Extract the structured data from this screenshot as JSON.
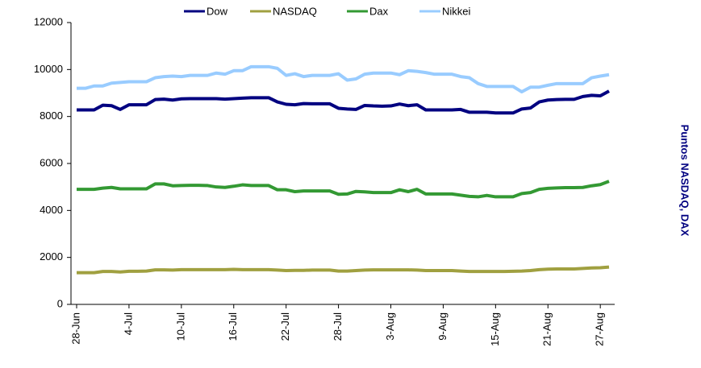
{
  "chart_data": {
    "type": "line",
    "y_label": "Puntos NASDAQ, DAX",
    "categories": [
      "28-Jun",
      null,
      null,
      null,
      null,
      null,
      "4-Jul",
      null,
      null,
      null,
      null,
      null,
      "10-Jul",
      null,
      null,
      null,
      null,
      null,
      "16-Jul",
      null,
      null,
      null,
      null,
      null,
      "22-Jul",
      null,
      null,
      null,
      null,
      null,
      "28-Jul",
      null,
      null,
      null,
      null,
      null,
      "3-Aug",
      null,
      null,
      null,
      null,
      null,
      "9-Aug",
      null,
      null,
      null,
      null,
      null,
      "15-Aug",
      null,
      null,
      null,
      null,
      null,
      "21-Aug",
      null,
      null,
      null,
      null,
      null,
      "27-Aug",
      null
    ],
    "series": [
      {
        "name": "Dow",
        "color": "#000080",
        "values": [
          8280,
          8280,
          8280,
          8480,
          8460,
          8300,
          8500,
          8500,
          8500,
          8720,
          8740,
          8700,
          8750,
          8760,
          8760,
          8760,
          8760,
          8740,
          8760,
          8780,
          8800,
          8800,
          8800,
          8620,
          8520,
          8500,
          8550,
          8540,
          8540,
          8540,
          8350,
          8320,
          8300,
          8470,
          8450,
          8440,
          8450,
          8530,
          8460,
          8500,
          8280,
          8280,
          8280,
          8280,
          8300,
          8180,
          8180,
          8180,
          8150,
          8150,
          8150,
          8320,
          8360,
          8620,
          8700,
          8720,
          8730,
          8730,
          8850,
          8900,
          8880,
          9080
        ]
      },
      {
        "name": "NASDAQ",
        "color": "#a0a040",
        "values": [
          1350,
          1350,
          1350,
          1400,
          1400,
          1380,
          1410,
          1410,
          1420,
          1470,
          1470,
          1460,
          1480,
          1480,
          1480,
          1480,
          1480,
          1480,
          1490,
          1480,
          1480,
          1480,
          1480,
          1460,
          1440,
          1450,
          1450,
          1460,
          1460,
          1460,
          1420,
          1420,
          1440,
          1460,
          1470,
          1470,
          1470,
          1470,
          1470,
          1460,
          1440,
          1440,
          1440,
          1440,
          1420,
          1400,
          1400,
          1400,
          1400,
          1400,
          1410,
          1420,
          1440,
          1480,
          1500,
          1510,
          1510,
          1510,
          1530,
          1550,
          1560,
          1590
        ]
      },
      {
        "name": "Dax",
        "color": "#339933",
        "values": [
          4900,
          4900,
          4900,
          4950,
          4980,
          4920,
          4920,
          4920,
          4920,
          5130,
          5130,
          5050,
          5060,
          5070,
          5070,
          5060,
          5000,
          4980,
          5030,
          5090,
          5060,
          5060,
          5060,
          4880,
          4880,
          4800,
          4830,
          4830,
          4830,
          4830,
          4690,
          4700,
          4810,
          4790,
          4760,
          4760,
          4760,
          4880,
          4800,
          4900,
          4700,
          4700,
          4700,
          4700,
          4650,
          4600,
          4580,
          4640,
          4580,
          4580,
          4580,
          4720,
          4760,
          4900,
          4940,
          4960,
          4970,
          4970,
          4980,
          5050,
          5100,
          5240
        ]
      },
      {
        "name": "Nikkei",
        "color": "#99ccff",
        "values": [
          9200,
          9200,
          9300,
          9300,
          9420,
          9450,
          9480,
          9480,
          9480,
          9650,
          9700,
          9720,
          9700,
          9750,
          9750,
          9750,
          9850,
          9800,
          9950,
          9950,
          10120,
          10120,
          10120,
          10050,
          9750,
          9820,
          9700,
          9750,
          9750,
          9750,
          9820,
          9550,
          9600,
          9800,
          9850,
          9850,
          9850,
          9780,
          9950,
          9920,
          9870,
          9800,
          9800,
          9800,
          9700,
          9650,
          9400,
          9280,
          9280,
          9280,
          9280,
          9050,
          9250,
          9250,
          9330,
          9400,
          9400,
          9400,
          9400,
          9650,
          9720,
          9780
        ]
      }
    ],
    "ylim": [
      0,
      12000
    ],
    "yticks": [
      0,
      2000,
      4000,
      6000,
      8000,
      10000,
      12000
    ],
    "legend": "top",
    "grid": false
  }
}
